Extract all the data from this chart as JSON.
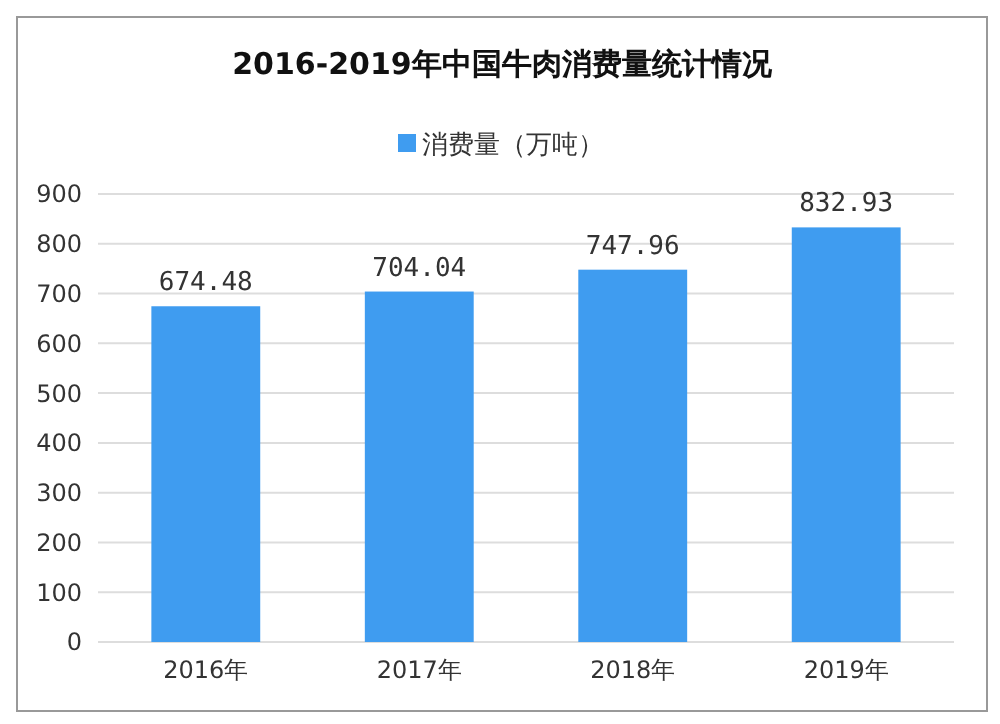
{
  "chart_data": {
    "type": "bar",
    "title": "2016-2019年中国牛肉消费量统计情况",
    "categories": [
      "2016年",
      "2017年",
      "2018年",
      "2019年"
    ],
    "series": [
      {
        "name": "消费量（万吨）",
        "color": "#3f9cf0",
        "values": [
          674.48,
          704.04,
          747.96,
          832.93
        ]
      }
    ],
    "ylim": [
      0,
      900
    ],
    "yticks": [
      0,
      100,
      200,
      300,
      400,
      500,
      600,
      700,
      800,
      900
    ],
    "grid": "y",
    "legend": "top",
    "data_labels": true
  }
}
